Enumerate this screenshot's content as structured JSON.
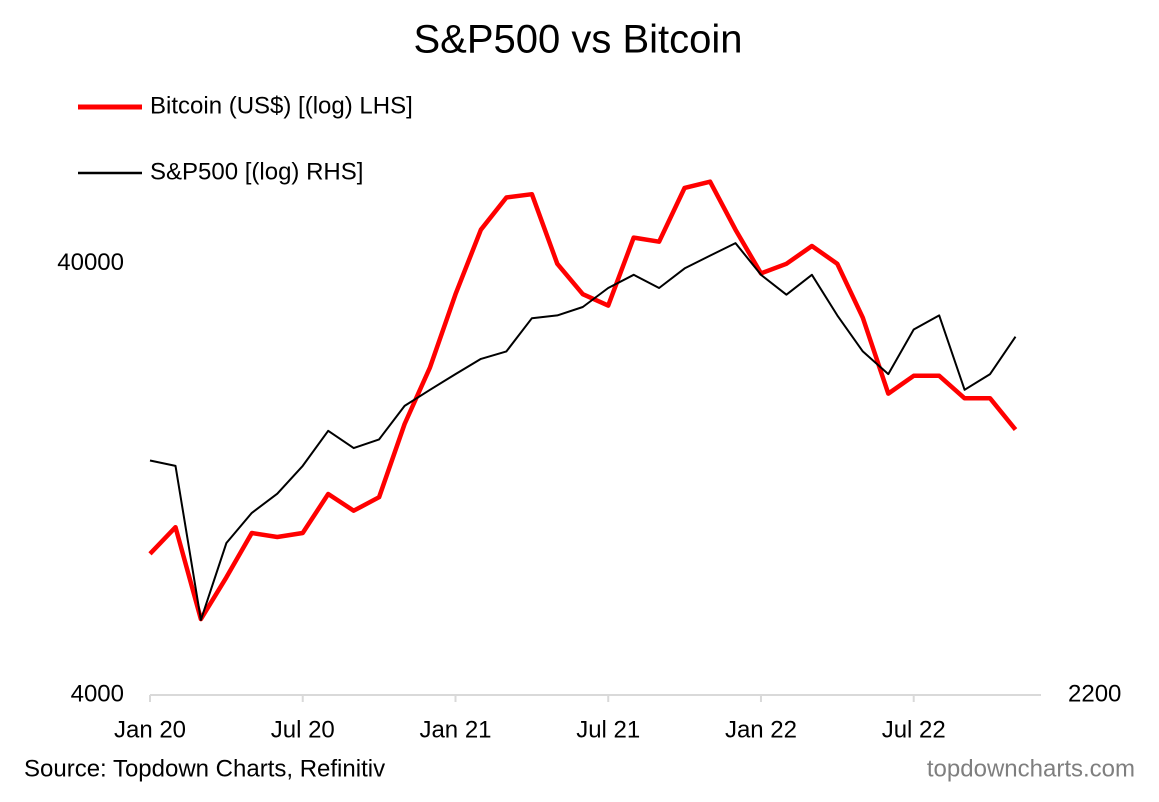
{
  "chart_data": {
    "type": "line",
    "title": "S&P500 vs Bitcoin",
    "source": "Source: Topdown Charts, Refinitiv",
    "credit": "topdowncharts.com",
    "x": [
      "2020-01",
      "2020-02",
      "2020-03",
      "2020-04",
      "2020-05",
      "2020-06",
      "2020-07",
      "2020-08",
      "2020-09",
      "2020-10",
      "2020-11",
      "2020-12",
      "2021-01",
      "2021-02",
      "2021-03",
      "2021-04",
      "2021-05",
      "2021-06",
      "2021-07",
      "2021-08",
      "2021-09",
      "2021-10",
      "2021-11",
      "2021-12",
      "2022-01",
      "2022-02",
      "2022-03",
      "2022-04",
      "2022-05",
      "2022-06",
      "2022-07",
      "2022-08",
      "2022-09",
      "2022-10",
      "2022-11"
    ],
    "xlim": [
      "2020-01",
      "2022-12"
    ],
    "xticks": [
      {
        "value": "2020-01",
        "label": "Jan 20"
      },
      {
        "value": "2020-07",
        "label": "Jul 20"
      },
      {
        "value": "2021-01",
        "label": "Jan 21"
      },
      {
        "value": "2021-07",
        "label": "Jul 21"
      },
      {
        "value": "2022-01",
        "label": "Jan 22"
      },
      {
        "value": "2022-07",
        "label": "Jul 22"
      }
    ],
    "log_scale": true,
    "ylim": [
      4000,
      80000
    ],
    "yticks": [
      4000,
      40000
    ],
    "y2lim": [
      2200,
      5720
    ],
    "y2ticks": [
      2200
    ],
    "series": [
      {
        "name": "Bitcoin (US$) [(log) LHS]",
        "color": "#ff0000",
        "values": [
          8500,
          9800,
          6000,
          7500,
          9500,
          9300,
          9500,
          11700,
          10700,
          11500,
          17000,
          23000,
          34000,
          48000,
          57000,
          58000,
          40000,
          34000,
          32000,
          46000,
          45000,
          60000,
          62000,
          48000,
          38000,
          40000,
          44000,
          40000,
          30000,
          20000,
          22000,
          22000,
          19500,
          19500,
          16500
        ]
      },
      {
        "name": "S&P500 [(log) RHS]",
        "color": "#000000",
        "axis": "y2",
        "values": [
          3280,
          3250,
          2500,
          2850,
          3000,
          3100,
          3250,
          3450,
          3350,
          3400,
          3600,
          3700,
          3800,
          3900,
          3950,
          4180,
          4200,
          4260,
          4400,
          4500,
          4400,
          4550,
          4650,
          4750,
          4500,
          4350,
          4500,
          4200,
          3950,
          3800,
          4100,
          4200,
          3700,
          3800,
          4050
        ]
      }
    ]
  }
}
